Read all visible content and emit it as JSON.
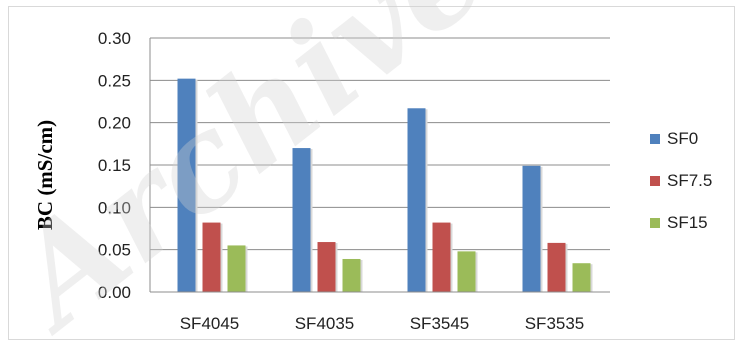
{
  "chart_data": {
    "type": "bar",
    "title": "",
    "xlabel": "",
    "ylabel": "BC (mS/cm)",
    "categories": [
      "SF4045",
      "SF4035",
      "SF3545",
      "SF3535"
    ],
    "series": [
      {
        "name": "SF0",
        "values": [
          0.252,
          0.17,
          0.217,
          0.149
        ],
        "color": "#4f81bd"
      },
      {
        "name": "SF7.5",
        "values": [
          0.082,
          0.059,
          0.082,
          0.058
        ],
        "color": "#c0504d"
      },
      {
        "name": "SF15",
        "values": [
          0.055,
          0.039,
          0.048,
          0.034
        ],
        "color": "#9bbb59"
      }
    ],
    "ylim": [
      0,
      0.3
    ],
    "yticks": [
      "0.00",
      "0.05",
      "0.10",
      "0.15",
      "0.20",
      "0.25",
      "0.30"
    ],
    "grid": true,
    "legend_position": "right"
  },
  "watermark": {
    "text": "Archive"
  }
}
